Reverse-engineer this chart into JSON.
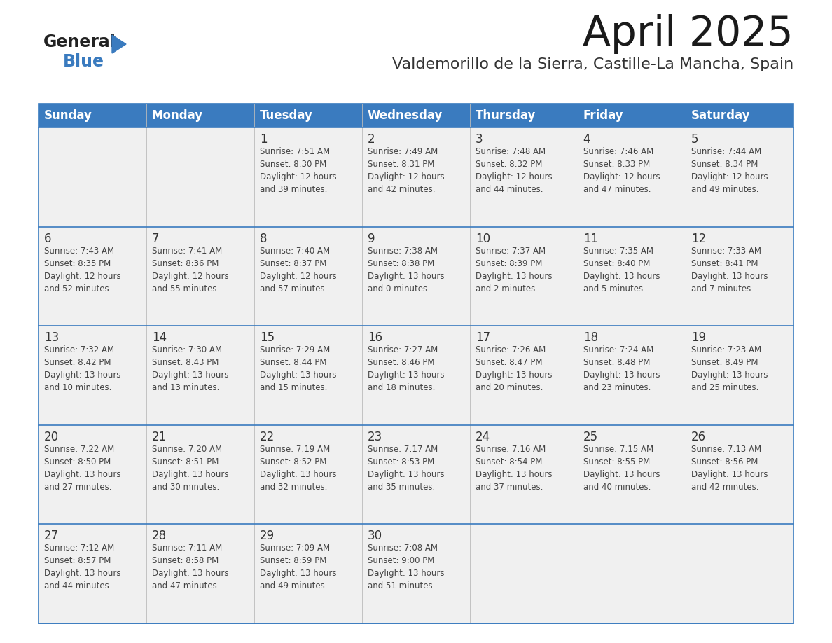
{
  "title": "April 2025",
  "subtitle": "Valdemorillo de la Sierra, Castille-La Mancha, Spain",
  "header_bg": "#3a7bbf",
  "header_text": "#ffffff",
  "row_bg": "#f0f0f0",
  "cell_border_color": "#3a7bbf",
  "text_dark": "#333333",
  "text_info": "#444444",
  "days_header": [
    "Sunday",
    "Monday",
    "Tuesday",
    "Wednesday",
    "Thursday",
    "Friday",
    "Saturday"
  ],
  "weeks": [
    [
      {
        "day": "",
        "info": ""
      },
      {
        "day": "",
        "info": ""
      },
      {
        "day": "1",
        "info": "Sunrise: 7:51 AM\nSunset: 8:30 PM\nDaylight: 12 hours\nand 39 minutes."
      },
      {
        "day": "2",
        "info": "Sunrise: 7:49 AM\nSunset: 8:31 PM\nDaylight: 12 hours\nand 42 minutes."
      },
      {
        "day": "3",
        "info": "Sunrise: 7:48 AM\nSunset: 8:32 PM\nDaylight: 12 hours\nand 44 minutes."
      },
      {
        "day": "4",
        "info": "Sunrise: 7:46 AM\nSunset: 8:33 PM\nDaylight: 12 hours\nand 47 minutes."
      },
      {
        "day": "5",
        "info": "Sunrise: 7:44 AM\nSunset: 8:34 PM\nDaylight: 12 hours\nand 49 minutes."
      }
    ],
    [
      {
        "day": "6",
        "info": "Sunrise: 7:43 AM\nSunset: 8:35 PM\nDaylight: 12 hours\nand 52 minutes."
      },
      {
        "day": "7",
        "info": "Sunrise: 7:41 AM\nSunset: 8:36 PM\nDaylight: 12 hours\nand 55 minutes."
      },
      {
        "day": "8",
        "info": "Sunrise: 7:40 AM\nSunset: 8:37 PM\nDaylight: 12 hours\nand 57 minutes."
      },
      {
        "day": "9",
        "info": "Sunrise: 7:38 AM\nSunset: 8:38 PM\nDaylight: 13 hours\nand 0 minutes."
      },
      {
        "day": "10",
        "info": "Sunrise: 7:37 AM\nSunset: 8:39 PM\nDaylight: 13 hours\nand 2 minutes."
      },
      {
        "day": "11",
        "info": "Sunrise: 7:35 AM\nSunset: 8:40 PM\nDaylight: 13 hours\nand 5 minutes."
      },
      {
        "day": "12",
        "info": "Sunrise: 7:33 AM\nSunset: 8:41 PM\nDaylight: 13 hours\nand 7 minutes."
      }
    ],
    [
      {
        "day": "13",
        "info": "Sunrise: 7:32 AM\nSunset: 8:42 PM\nDaylight: 13 hours\nand 10 minutes."
      },
      {
        "day": "14",
        "info": "Sunrise: 7:30 AM\nSunset: 8:43 PM\nDaylight: 13 hours\nand 13 minutes."
      },
      {
        "day": "15",
        "info": "Sunrise: 7:29 AM\nSunset: 8:44 PM\nDaylight: 13 hours\nand 15 minutes."
      },
      {
        "day": "16",
        "info": "Sunrise: 7:27 AM\nSunset: 8:46 PM\nDaylight: 13 hours\nand 18 minutes."
      },
      {
        "day": "17",
        "info": "Sunrise: 7:26 AM\nSunset: 8:47 PM\nDaylight: 13 hours\nand 20 minutes."
      },
      {
        "day": "18",
        "info": "Sunrise: 7:24 AM\nSunset: 8:48 PM\nDaylight: 13 hours\nand 23 minutes."
      },
      {
        "day": "19",
        "info": "Sunrise: 7:23 AM\nSunset: 8:49 PM\nDaylight: 13 hours\nand 25 minutes."
      }
    ],
    [
      {
        "day": "20",
        "info": "Sunrise: 7:22 AM\nSunset: 8:50 PM\nDaylight: 13 hours\nand 27 minutes."
      },
      {
        "day": "21",
        "info": "Sunrise: 7:20 AM\nSunset: 8:51 PM\nDaylight: 13 hours\nand 30 minutes."
      },
      {
        "day": "22",
        "info": "Sunrise: 7:19 AM\nSunset: 8:52 PM\nDaylight: 13 hours\nand 32 minutes."
      },
      {
        "day": "23",
        "info": "Sunrise: 7:17 AM\nSunset: 8:53 PM\nDaylight: 13 hours\nand 35 minutes."
      },
      {
        "day": "24",
        "info": "Sunrise: 7:16 AM\nSunset: 8:54 PM\nDaylight: 13 hours\nand 37 minutes."
      },
      {
        "day": "25",
        "info": "Sunrise: 7:15 AM\nSunset: 8:55 PM\nDaylight: 13 hours\nand 40 minutes."
      },
      {
        "day": "26",
        "info": "Sunrise: 7:13 AM\nSunset: 8:56 PM\nDaylight: 13 hours\nand 42 minutes."
      }
    ],
    [
      {
        "day": "27",
        "info": "Sunrise: 7:12 AM\nSunset: 8:57 PM\nDaylight: 13 hours\nand 44 minutes."
      },
      {
        "day": "28",
        "info": "Sunrise: 7:11 AM\nSunset: 8:58 PM\nDaylight: 13 hours\nand 47 minutes."
      },
      {
        "day": "29",
        "info": "Sunrise: 7:09 AM\nSunset: 8:59 PM\nDaylight: 13 hours\nand 49 minutes."
      },
      {
        "day": "30",
        "info": "Sunrise: 7:08 AM\nSunset: 9:00 PM\nDaylight: 13 hours\nand 51 minutes."
      },
      {
        "day": "",
        "info": ""
      },
      {
        "day": "",
        "info": ""
      },
      {
        "day": "",
        "info": ""
      }
    ]
  ],
  "logo_general_color": "#222222",
  "logo_blue_color": "#3a7bbf",
  "logo_triangle_color": "#3a7bbf",
  "title_fontsize": 42,
  "subtitle_fontsize": 16,
  "header_fontsize": 12,
  "day_num_fontsize": 12,
  "info_fontsize": 8.5
}
